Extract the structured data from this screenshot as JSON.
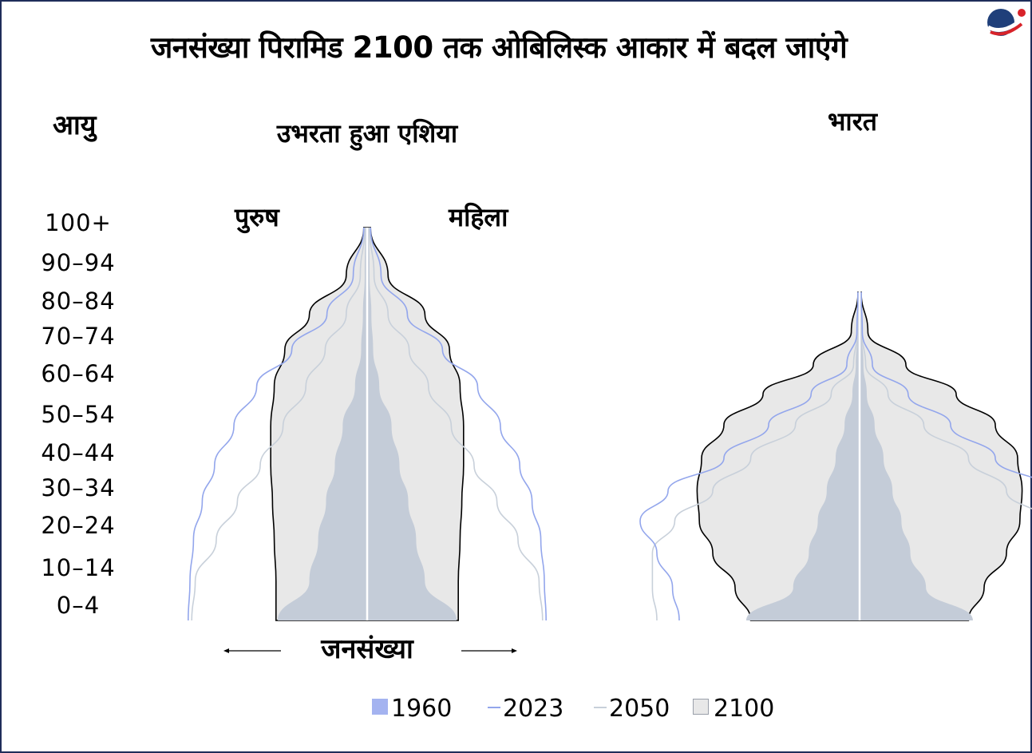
{
  "title": "जनसंख्या पिरामिड 2100 तक ओबिलिस्क आकार में बदल जाएंगे",
  "logo_icon": "brand-logo-icon",
  "colors": {
    "y1960": "#c4ccd8",
    "y2023": "#93a6ec",
    "y2050": "#c8d0da",
    "y2100_fill": "#e8e8e8",
    "y2100_stroke": "#000000",
    "frame": "#1f2d5a"
  },
  "age_axis": {
    "title": "आयु",
    "ticks": [
      "100+",
      "90–94",
      "80–84",
      "70–74",
      "60–64",
      "50–54",
      "40–44",
      "30–34",
      "20–24",
      "10–14",
      "0–4"
    ]
  },
  "xlabel": "जनसंख्या",
  "gender": {
    "male": "पुरुष",
    "female": "महिला"
  },
  "legend": [
    {
      "label": "1960",
      "icon": "bar-swatch"
    },
    {
      "label": "2023",
      "icon": "line-swatch"
    },
    {
      "label": "2050",
      "icon": "line-swatch"
    },
    {
      "label": "2100",
      "icon": "box-swatch"
    }
  ],
  "chart_data": [
    {
      "type": "area",
      "title": "उभरता हुआ एशिया",
      "ylabel": "आयु",
      "xlabel": "जनसंख्या",
      "categories": [
        "0–4",
        "10–14",
        "20–24",
        "30–34",
        "40–44",
        "50–54",
        "60–64",
        "70–74",
        "80–84",
        "90–94",
        "100+"
      ],
      "series": [
        {
          "name": "1960",
          "values": [
            1.0,
            0.64,
            0.54,
            0.45,
            0.35,
            0.26,
            0.12,
            0.05,
            0.03,
            0.01,
            0.005
          ]
        },
        {
          "name": "2023",
          "values": [
            2.02,
            2.0,
            1.96,
            1.86,
            1.72,
            1.5,
            1.24,
            0.84,
            0.44,
            0.14,
            0.02
          ]
        },
        {
          "name": "2050",
          "values": [
            1.98,
            1.94,
            1.7,
            1.46,
            1.2,
            0.94,
            0.68,
            0.46,
            0.22,
            0.06,
            0.01
          ]
        },
        {
          "name": "2100",
          "values": [
            1.02,
            1.02,
            1.04,
            1.06,
            1.08,
            1.08,
            1.04,
            0.92,
            0.64,
            0.22,
            0.02
          ]
        }
      ]
    },
    {
      "type": "area",
      "title": "भारत",
      "ylabel": "आयु",
      "xlabel": "जनसंख्या",
      "categories": [
        "0–4",
        "10–14",
        "20–24",
        "30–34",
        "40–44",
        "50–54",
        "60–64",
        "70–74",
        "80–84",
        "90–94",
        "100+"
      ],
      "series": [
        {
          "name": "1960",
          "values": [
            1.0,
            0.58,
            0.44,
            0.36,
            0.28,
            0.2,
            0.12,
            0.05,
            0.02,
            0.005,
            0.0
          ]
        },
        {
          "name": "2023",
          "values": [
            1.6,
            1.66,
            1.8,
            1.95,
            1.7,
            1.2,
            0.8,
            0.42,
            0.1,
            0.01,
            0.0
          ]
        },
        {
          "name": "2050",
          "values": [
            1.8,
            1.84,
            1.84,
            1.64,
            1.3,
            0.96,
            0.56,
            0.24,
            0.04,
            0.005,
            0.0
          ]
        },
        {
          "name": "2100",
          "values": [
            0.96,
            1.1,
            1.3,
            1.42,
            1.44,
            1.4,
            1.2,
            0.85,
            0.4,
            0.06,
            0.0
          ]
        }
      ]
    }
  ]
}
